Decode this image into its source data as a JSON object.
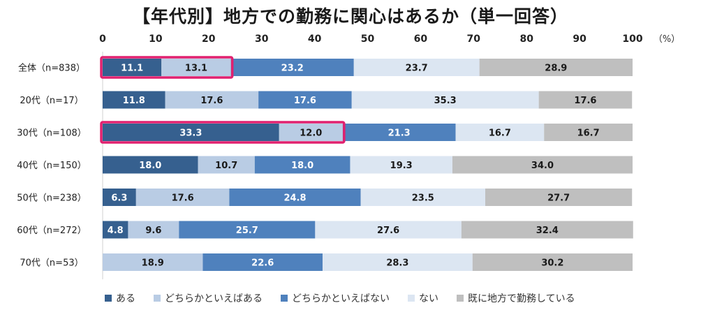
{
  "chart_data": {
    "type": "bar",
    "orientation": "horizontal",
    "stacked": true,
    "title": "【年代別】地方での勤務に関心はあるか（単一回答）",
    "unit_label": "（%）",
    "xlim": [
      0,
      100
    ],
    "xticks": [
      "0",
      "10",
      "20",
      "30",
      "40",
      "50",
      "60",
      "70",
      "80",
      "90",
      "100"
    ],
    "categories": [
      "全体（n=838）",
      "20代（n=17）",
      "30代（n=108）",
      "40代（n=150）",
      "50代（n=238）",
      "60代（n=272）",
      "70代（n=53）"
    ],
    "series": [
      {
        "name": "ある",
        "color": "#36608f",
        "label_color": "#ffffff",
        "values": [
          11.1,
          11.8,
          33.3,
          18.0,
          6.3,
          4.8,
          0
        ]
      },
      {
        "name": "どちらかといえばある",
        "color": "#b9cce4",
        "label_color": "#1a1a1a",
        "values": [
          13.1,
          17.6,
          12.0,
          10.7,
          17.6,
          9.6,
          18.9
        ]
      },
      {
        "name": "どちらかといえばない",
        "color": "#4f81bd",
        "label_color": "#ffffff",
        "values": [
          23.2,
          17.6,
          21.3,
          18.0,
          24.8,
          25.7,
          22.6
        ]
      },
      {
        "name": "ない",
        "color": "#dce6f2",
        "label_color": "#1a1a1a",
        "values": [
          23.7,
          35.3,
          16.7,
          19.3,
          23.5,
          27.6,
          28.3
        ]
      },
      {
        "name": "既に地方で勤務している",
        "color": "#bfbfbf",
        "label_color": "#1a1a1a",
        "values": [
          28.9,
          17.6,
          16.7,
          34.0,
          27.7,
          32.4,
          30.2
        ]
      }
    ],
    "highlights": [
      {
        "row": 0,
        "series_from": 0,
        "series_to": 1,
        "color": "#e0206f"
      },
      {
        "row": 2,
        "series_from": 0,
        "series_to": 1,
        "color": "#e0206f"
      }
    ],
    "legend_position": "bottom",
    "grid": false
  }
}
